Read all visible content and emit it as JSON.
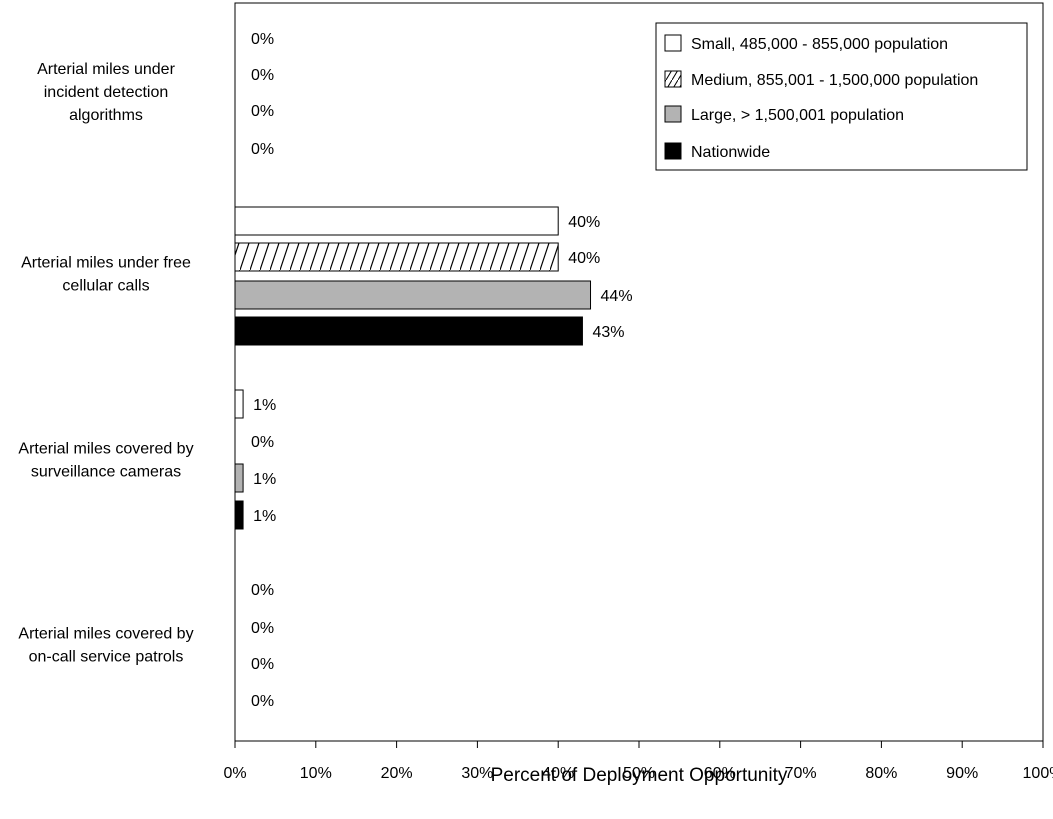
{
  "chart_data": {
    "type": "bar",
    "orientation": "horizontal",
    "categories": [
      [
        "Arterial miles under",
        "incident detection",
        "algorithms"
      ],
      [
        "Arterial miles under free",
        "cellular calls"
      ],
      [
        "Arterial miles covered by",
        "surveillance cameras"
      ],
      [
        "Arterial miles covered by",
        "on-call service patrols"
      ]
    ],
    "series": [
      {
        "name": "Small, 485,000 - 855,000 population",
        "style": "white",
        "values": [
          0,
          40,
          1,
          0
        ]
      },
      {
        "name": "Medium, 855,001 - 1,500,000 population",
        "style": "hatched",
        "values": [
          0,
          40,
          0,
          0
        ]
      },
      {
        "name": "Large, > 1,500,001 population",
        "style": "gray",
        "values": [
          0,
          44,
          1,
          0
        ]
      },
      {
        "name": "Nationwide",
        "style": "black",
        "values": [
          0,
          43,
          1,
          0
        ]
      }
    ],
    "value_labels": [
      [
        "0%",
        "40%",
        "1%",
        "0%"
      ],
      [
        "0%",
        "40%",
        "0%",
        "0%"
      ],
      [
        "0%",
        "44%",
        "1%",
        "0%"
      ],
      [
        "0%",
        "43%",
        "1%",
        "0%"
      ]
    ],
    "xlabel": "Percent of Deployment Opportunity",
    "xlim": [
      0,
      100
    ],
    "x_ticks": [
      "0%",
      "10%",
      "20%",
      "30%",
      "40%",
      "50%",
      "60%",
      "70%",
      "80%",
      "90%",
      "100%"
    ],
    "grid": false,
    "legend_position": "top-right",
    "colors": {
      "white": "#ffffff",
      "gray": "#b3b3b3",
      "black": "#000000",
      "outline": "#000000"
    }
  }
}
